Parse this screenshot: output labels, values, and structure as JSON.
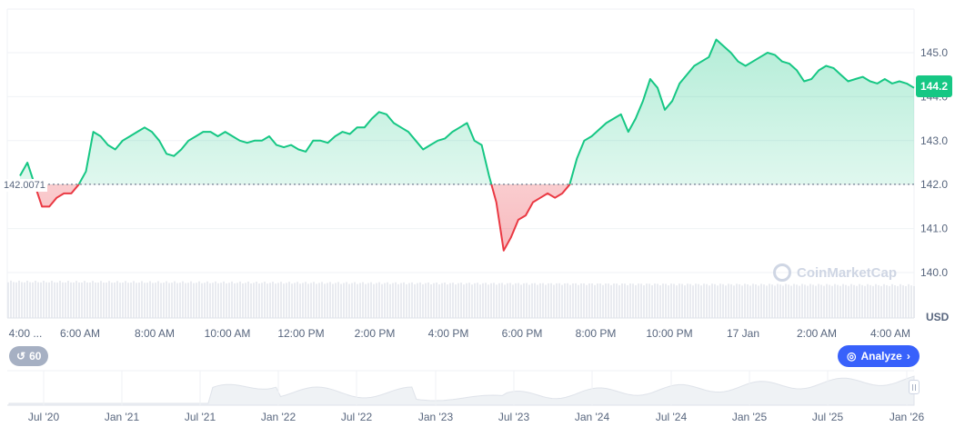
{
  "chart_data": {
    "type": "area",
    "y_range": [
      139.0,
      146.0
    ],
    "y_ticks": [
      "145.0",
      "144.0",
      "143.0",
      "142.0",
      "141.0",
      "140.0"
    ],
    "unit_label": "USD",
    "baseline": 142.0071,
    "baseline_label": "142.0071",
    "last_price": "144.2",
    "x_ticks": [
      "4:00 ...",
      "6:00 AM",
      "8:00 AM",
      "10:00 AM",
      "12:00 PM",
      "2:00 PM",
      "4:00 PM",
      "6:00 PM",
      "8:00 PM",
      "10:00 PM",
      "17 Jan",
      "2:00 AM",
      "4:00 AM"
    ],
    "series": [
      {
        "values": [
          142.2,
          142.5,
          142.0,
          141.5,
          141.5,
          141.7,
          141.8,
          141.8,
          142.0,
          142.3,
          143.2,
          143.1,
          142.9,
          142.8,
          143.0,
          143.1,
          143.2,
          143.3,
          143.2,
          143.0,
          142.7,
          142.65,
          142.8,
          143.0,
          143.1,
          143.2,
          143.2,
          143.1,
          143.2,
          143.1,
          143.0,
          142.95,
          143.0,
          143.0,
          143.1,
          142.9,
          142.85,
          142.9,
          142.8,
          142.75,
          143.0,
          143.0,
          142.95,
          143.1,
          143.2,
          143.15,
          143.3,
          143.3,
          143.5,
          143.65,
          143.6,
          143.4,
          143.3,
          143.2,
          143.0,
          142.8,
          142.9,
          143.0,
          143.05,
          143.2,
          143.3,
          143.4,
          143.0,
          142.9,
          142.2,
          141.6,
          140.5,
          140.8,
          141.2,
          141.3,
          141.6,
          141.7,
          141.8,
          141.7,
          141.8,
          142.0,
          142.6,
          143.0,
          143.1,
          143.25,
          143.4,
          143.5,
          143.6,
          143.2,
          143.5,
          143.9,
          144.4,
          144.2,
          143.7,
          143.9,
          144.3,
          144.5,
          144.7,
          144.8,
          144.9,
          145.3,
          145.15,
          145.0,
          144.8,
          144.7,
          144.8,
          144.9,
          145.0,
          144.95,
          144.8,
          144.75,
          144.6,
          144.35,
          144.4,
          144.6,
          144.7,
          144.65,
          144.5,
          144.35,
          144.4,
          144.45,
          144.35,
          144.3,
          144.4,
          144.3,
          144.35,
          144.3,
          144.2
        ]
      }
    ],
    "overview": {
      "x_ticks": [
        "Jul '20",
        "Jan '21",
        "Jul '21",
        "Jan '22",
        "Jul '22",
        "Jan '23",
        "Jul '23",
        "Jan '24",
        "Jul '24",
        "Jan '25",
        "Jul '25",
        "Jan '26"
      ]
    },
    "colors": {
      "up": "#16c784",
      "down": "#ea3943",
      "grid": "#eff2f5"
    }
  },
  "controls": {
    "interval_value": "60",
    "analyze_label": "Analyze"
  },
  "watermark": {
    "text": "CoinMarketCap"
  }
}
